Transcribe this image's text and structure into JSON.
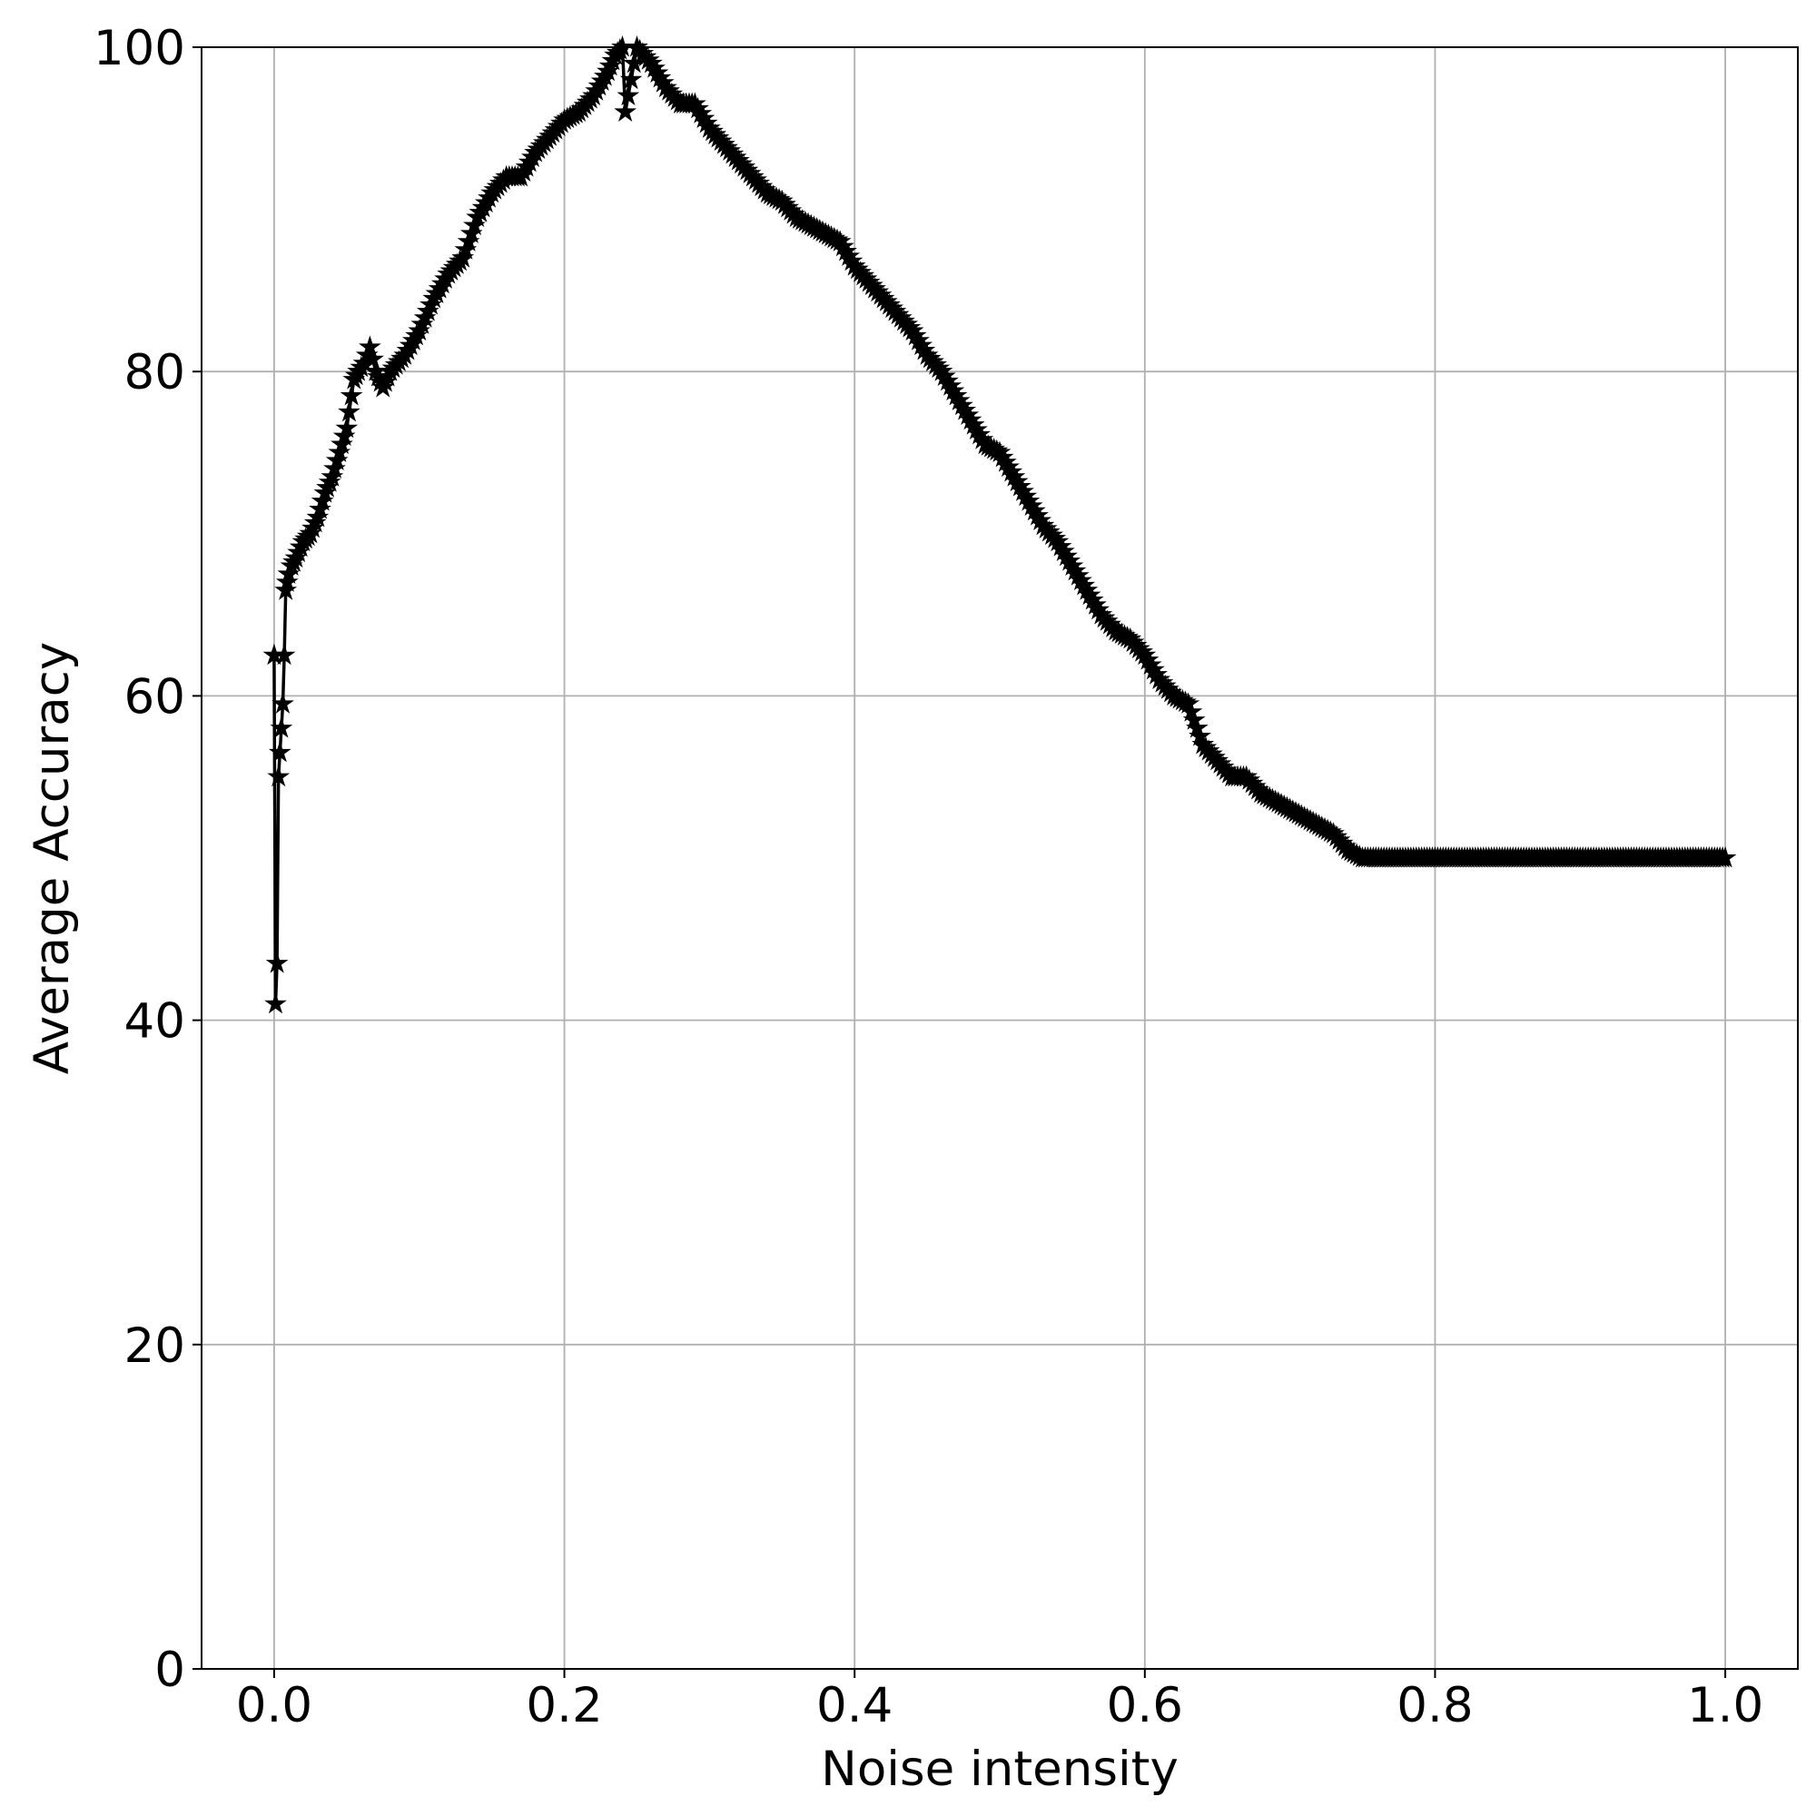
{
  "chart_data": {
    "type": "line",
    "title": "",
    "xlabel": "Noise intensity",
    "ylabel": "Average Accuracy",
    "xlim": [
      -0.05,
      1.05
    ],
    "ylim": [
      0,
      100
    ],
    "xticks": [
      0.0,
      0.2,
      0.4,
      0.6,
      0.8,
      1.0
    ],
    "xtick_labels": [
      "0.0",
      "0.2",
      "0.4",
      "0.6",
      "0.8",
      "1.0"
    ],
    "yticks": [
      0,
      20,
      40,
      60,
      80,
      100
    ],
    "ytick_labels": [
      "0",
      "20",
      "40",
      "60",
      "80",
      "100"
    ],
    "grid": true,
    "legend": "none",
    "marker": "star",
    "colors": {
      "line": "#000000",
      "grid": "#b0b0b0",
      "background": "#ffffff"
    },
    "series": [
      {
        "x": [
          0.0,
          0.001,
          0.002,
          0.003,
          0.004,
          0.005,
          0.006,
          0.007,
          0.008,
          0.009,
          0.01,
          0.012,
          0.015,
          0.02,
          0.025,
          0.03,
          0.035,
          0.04,
          0.045,
          0.05,
          0.055,
          0.058,
          0.062,
          0.066,
          0.07,
          0.075,
          0.08,
          0.09,
          0.1,
          0.11,
          0.12,
          0.13,
          0.14,
          0.15,
          0.16,
          0.17,
          0.18,
          0.19,
          0.2,
          0.21,
          0.22,
          0.23,
          0.235,
          0.24,
          0.242,
          0.25,
          0.26,
          0.27,
          0.28,
          0.29,
          0.3,
          0.31,
          0.32,
          0.33,
          0.34,
          0.35,
          0.36,
          0.37,
          0.38,
          0.39,
          0.4,
          0.41,
          0.42,
          0.43,
          0.44,
          0.45,
          0.46,
          0.47,
          0.48,
          0.49,
          0.5,
          0.51,
          0.52,
          0.53,
          0.54,
          0.55,
          0.56,
          0.57,
          0.58,
          0.59,
          0.6,
          0.61,
          0.62,
          0.63,
          0.64,
          0.65,
          0.66,
          0.67,
          0.68,
          0.69,
          0.7,
          0.71,
          0.72,
          0.73,
          0.74,
          0.75,
          0.8,
          0.85,
          0.9,
          0.95,
          1.0
        ],
        "y": [
          62.5,
          41.0,
          43.5,
          55.0,
          56.5,
          58.0,
          59.5,
          62.5,
          66.5,
          67.0,
          67.5,
          68.0,
          68.5,
          69.5,
          70.0,
          71.0,
          72.5,
          73.5,
          75.0,
          76.5,
          79.5,
          80.0,
          80.5,
          81.5,
          80.0,
          79.0,
          80.0,
          81.0,
          82.5,
          84.5,
          86.0,
          87.0,
          89.5,
          91.0,
          92.0,
          92.0,
          93.5,
          94.5,
          95.5,
          96.0,
          97.0,
          98.5,
          99.5,
          100.0,
          96.0,
          100.0,
          99.0,
          97.5,
          96.5,
          96.5,
          95.0,
          94.0,
          93.0,
          92.0,
          91.0,
          90.5,
          89.5,
          89.0,
          88.5,
          88.0,
          86.5,
          85.5,
          84.5,
          83.5,
          82.5,
          81.0,
          80.0,
          78.5,
          77.0,
          75.5,
          75.0,
          73.5,
          72.0,
          70.5,
          69.5,
          68.0,
          66.5,
          65.0,
          64.0,
          63.5,
          62.5,
          61.0,
          60.0,
          59.5,
          57.0,
          56.0,
          55.0,
          55.0,
          54.0,
          53.5,
          53.0,
          52.5,
          52.0,
          51.5,
          50.5,
          50.0,
          50.0,
          50.0,
          50.0,
          50.0,
          50.0
        ]
      }
    ]
  }
}
